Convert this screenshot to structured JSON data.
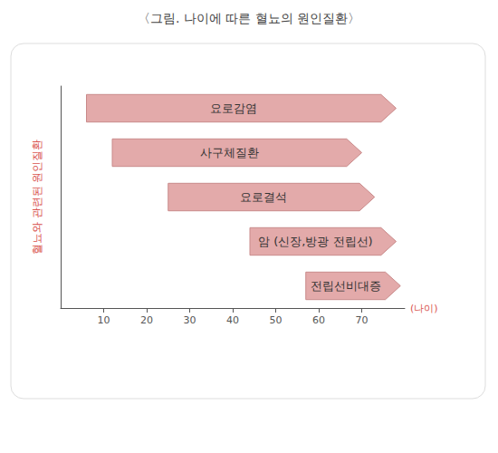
{
  "chart_data": {
    "type": "range_bar",
    "title": "〈그림. 나이에 따른 혈뇨의 원인질환〉",
    "orientation": "horizontal",
    "y_label": "혈뇨와 관련된 원인질환",
    "x_label": "(나이)",
    "categories": [
      "요로감염",
      "사구체질환",
      "요로결석",
      "암 (신장,방광 전립선)",
      "전립선비대증"
    ],
    "start": [
      6,
      12,
      25,
      44,
      57
    ],
    "end": [
      78,
      70,
      73,
      78,
      79
    ],
    "color": "#e3aaaa",
    "xlim": [
      0,
      80
    ],
    "xticks": [
      10,
      20,
      30,
      40,
      50,
      60,
      70
    ],
    "data_labels": true,
    "tick_labels": "x",
    "grid": false
  }
}
